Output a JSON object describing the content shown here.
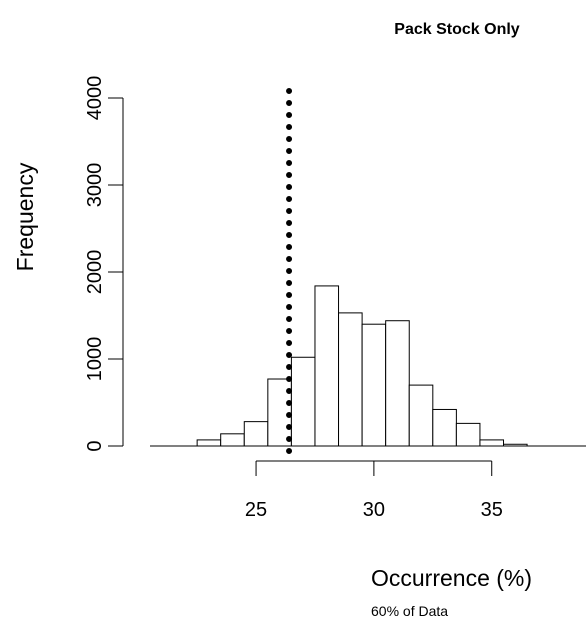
{
  "chart_data": {
    "type": "bar",
    "title": "Pack Stock Only",
    "xlabel": "Occurrence (%)",
    "ylabel": "Frequency",
    "note": "60% of Data",
    "bin_width": 1,
    "bins": [
      {
        "start": 22.5,
        "end": 23.5,
        "count": 70
      },
      {
        "start": 23.5,
        "end": 24.5,
        "count": 140
      },
      {
        "start": 24.5,
        "end": 25.5,
        "count": 280
      },
      {
        "start": 25.5,
        "end": 26.5,
        "count": 770
      },
      {
        "start": 26.5,
        "end": 27.5,
        "count": 1020
      },
      {
        "start": 27.5,
        "end": 28.5,
        "count": 1840
      },
      {
        "start": 28.5,
        "end": 29.5,
        "count": 1530
      },
      {
        "start": 29.5,
        "end": 30.5,
        "count": 1400
      },
      {
        "start": 30.5,
        "end": 31.5,
        "count": 1440
      },
      {
        "start": 31.5,
        "end": 32.5,
        "count": 700
      },
      {
        "start": 32.5,
        "end": 33.5,
        "count": 420
      },
      {
        "start": 33.5,
        "end": 34.5,
        "count": 260
      },
      {
        "start": 34.5,
        "end": 35.5,
        "count": 70
      },
      {
        "start": 35.5,
        "end": 36.5,
        "count": 20
      }
    ],
    "reference_line": {
      "x": 26.4,
      "style": "dotted"
    },
    "xlim": [
      20.5,
      39.0
    ],
    "ylim": [
      0,
      4000
    ],
    "xticks": [
      25,
      30,
      35
    ],
    "yticks": [
      0,
      1000,
      2000,
      3000,
      4000
    ],
    "grid": false,
    "legend": "none"
  }
}
